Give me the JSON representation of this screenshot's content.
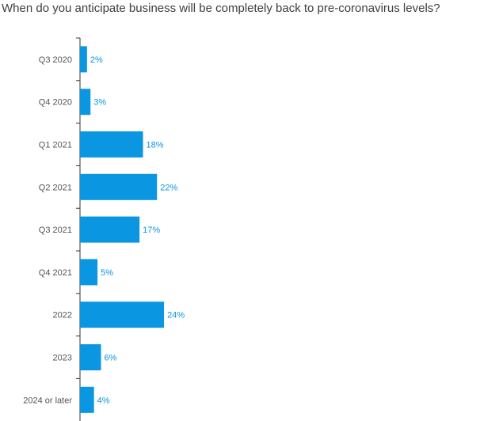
{
  "chart_data": {
    "type": "bar",
    "orientation": "horizontal",
    "title": "When do you anticipate business will be completely back to pre-coronavirus levels?",
    "categories": [
      "Q3 2020",
      "Q4 2020",
      "Q1 2021",
      "Q2 2021",
      "Q3 2021",
      "Q4 2021",
      "2022",
      "2023",
      "2024 or later"
    ],
    "values": [
      2,
      3,
      18,
      22,
      17,
      5,
      24,
      6,
      4
    ],
    "data_labels": [
      "2%",
      "3%",
      "18%",
      "22%",
      "17%",
      "5%",
      "24%",
      "6%",
      "4%"
    ],
    "unit": "%",
    "xlim": [
      0,
      100
    ],
    "grid": false,
    "legend": "none",
    "colors": {
      "bar": "#0a96e0",
      "label": "#0a96e0",
      "axis": "#333333"
    }
  }
}
